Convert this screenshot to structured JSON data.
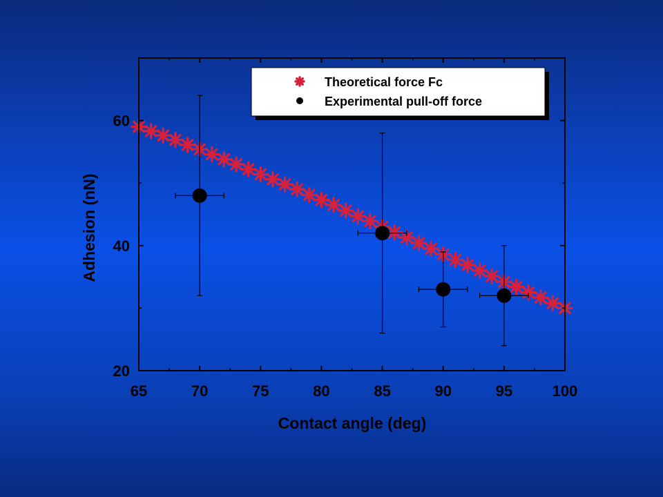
{
  "chart_data": {
    "type": "scatter",
    "xlabel": "Contact angle (deg)",
    "ylabel": "Adhesion (nN)",
    "xlim": [
      65,
      100
    ],
    "ylim": [
      20,
      70
    ],
    "xticks": [
      65,
      70,
      75,
      80,
      85,
      90,
      95,
      100
    ],
    "yticks": [
      20,
      40,
      60
    ],
    "grid": false,
    "legend_position": "top-right",
    "series": [
      {
        "name": "Theoretical force Fc",
        "marker": "asterisk",
        "color": "#d8203a",
        "x": [
          65,
          66,
          67,
          68,
          69,
          70,
          71,
          72,
          73,
          74,
          75,
          76,
          77,
          78,
          79,
          80,
          81,
          82,
          83,
          84,
          85,
          86,
          87,
          88,
          89,
          90,
          91,
          92,
          93,
          94,
          95,
          96,
          97,
          98,
          99,
          100
        ],
        "y": [
          59.0,
          58.3,
          57.6,
          56.9,
          56.1,
          55.4,
          54.6,
          53.8,
          53.0,
          52.2,
          51.4,
          50.6,
          49.8,
          49.0,
          48.1,
          47.3,
          46.5,
          45.6,
          44.7,
          43.9,
          43.0,
          42.1,
          41.3,
          40.4,
          39.5,
          38.6,
          37.7,
          36.9,
          36.0,
          35.1,
          34.2,
          33.4,
          32.5,
          31.7,
          30.8,
          30.0
        ]
      },
      {
        "name": "Experimental pull-off force",
        "marker": "circle",
        "color": "#000000",
        "x": [
          70,
          85,
          90,
          95
        ],
        "y": [
          48,
          42,
          33,
          32
        ],
        "y_err_low": [
          32,
          26,
          27,
          24
        ],
        "y_err_high": [
          64,
          58,
          39,
          40
        ],
        "x_err": [
          2,
          2,
          2,
          2
        ]
      }
    ]
  },
  "colors": {
    "plot_background": "#0a50e6",
    "axes": "#000000",
    "theoretical": "#d8203a",
    "experimental": "#000000",
    "legend_background": "#ffffff",
    "legend_shadow": "#000000"
  }
}
